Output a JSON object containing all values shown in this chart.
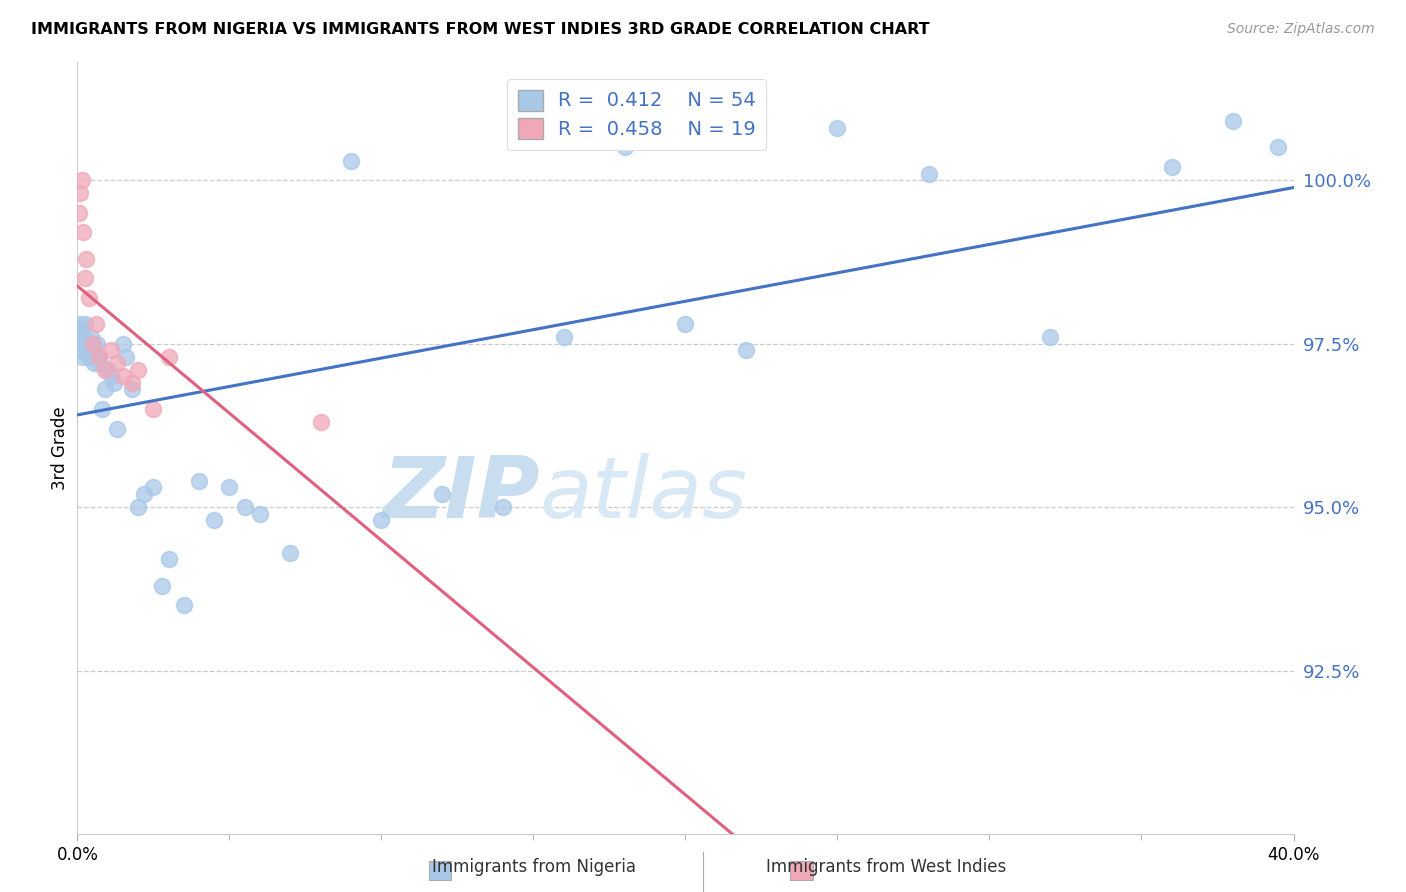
{
  "title": "IMMIGRANTS FROM NIGERIA VS IMMIGRANTS FROM WEST INDIES 3RD GRADE CORRELATION CHART",
  "source": "Source: ZipAtlas.com",
  "ylabel": "3rd Grade",
  "legend_label1": "Immigrants from Nigeria",
  "legend_label2": "Immigrants from West Indies",
  "R1": 0.412,
  "N1": 54,
  "R2": 0.458,
  "N2": 19,
  "color1": "#a8c8e8",
  "color2": "#f0a8b8",
  "line_color1": "#4472c4",
  "line_color2": "#e06080",
  "xmin": 0.0,
  "xmax": 40.0,
  "ymin": 90.0,
  "ymax": 101.8,
  "yticks": [
    92.5,
    95.0,
    97.5,
    100.0
  ],
  "watermark_zip": "ZIP",
  "watermark_atlas": "atlas",
  "nigeria_x": [
    0.05,
    0.08,
    0.1,
    0.12,
    0.15,
    0.18,
    0.2,
    0.22,
    0.25,
    0.3,
    0.35,
    0.4,
    0.45,
    0.5,
    0.55,
    0.6,
    0.65,
    0.7,
    0.75,
    0.8,
    0.9,
    1.0,
    1.1,
    1.2,
    1.3,
    1.5,
    1.6,
    1.8,
    2.0,
    2.2,
    2.5,
    2.8,
    3.0,
    3.5,
    4.0,
    4.5,
    5.0,
    5.5,
    6.0,
    7.0,
    9.0,
    10.0,
    12.0,
    14.0,
    16.0,
    18.0,
    20.0,
    22.0,
    25.0,
    28.0,
    32.0,
    36.0,
    38.0,
    39.5
  ],
  "nigeria_y": [
    97.5,
    97.6,
    97.8,
    97.4,
    97.7,
    97.5,
    97.3,
    97.6,
    97.8,
    97.5,
    97.4,
    97.3,
    97.6,
    97.5,
    97.2,
    97.4,
    97.5,
    97.3,
    97.2,
    96.5,
    96.8,
    97.1,
    97.0,
    96.9,
    96.2,
    97.5,
    97.3,
    96.8,
    95.0,
    95.2,
    95.3,
    93.8,
    94.2,
    93.5,
    95.4,
    94.8,
    95.3,
    95.0,
    94.9,
    94.3,
    100.3,
    94.8,
    95.2,
    95.0,
    97.6,
    100.5,
    97.8,
    97.4,
    100.8,
    100.1,
    97.6,
    100.2,
    100.9,
    100.5
  ],
  "windies_x": [
    0.05,
    0.1,
    0.15,
    0.2,
    0.25,
    0.3,
    0.4,
    0.5,
    0.6,
    0.7,
    0.9,
    1.1,
    1.3,
    1.5,
    1.8,
    2.0,
    2.5,
    3.0,
    8.0
  ],
  "windies_y": [
    99.5,
    99.8,
    100.0,
    99.2,
    98.5,
    98.8,
    98.2,
    97.5,
    97.8,
    97.3,
    97.1,
    97.4,
    97.2,
    97.0,
    96.9,
    97.1,
    96.5,
    97.3,
    96.3
  ]
}
